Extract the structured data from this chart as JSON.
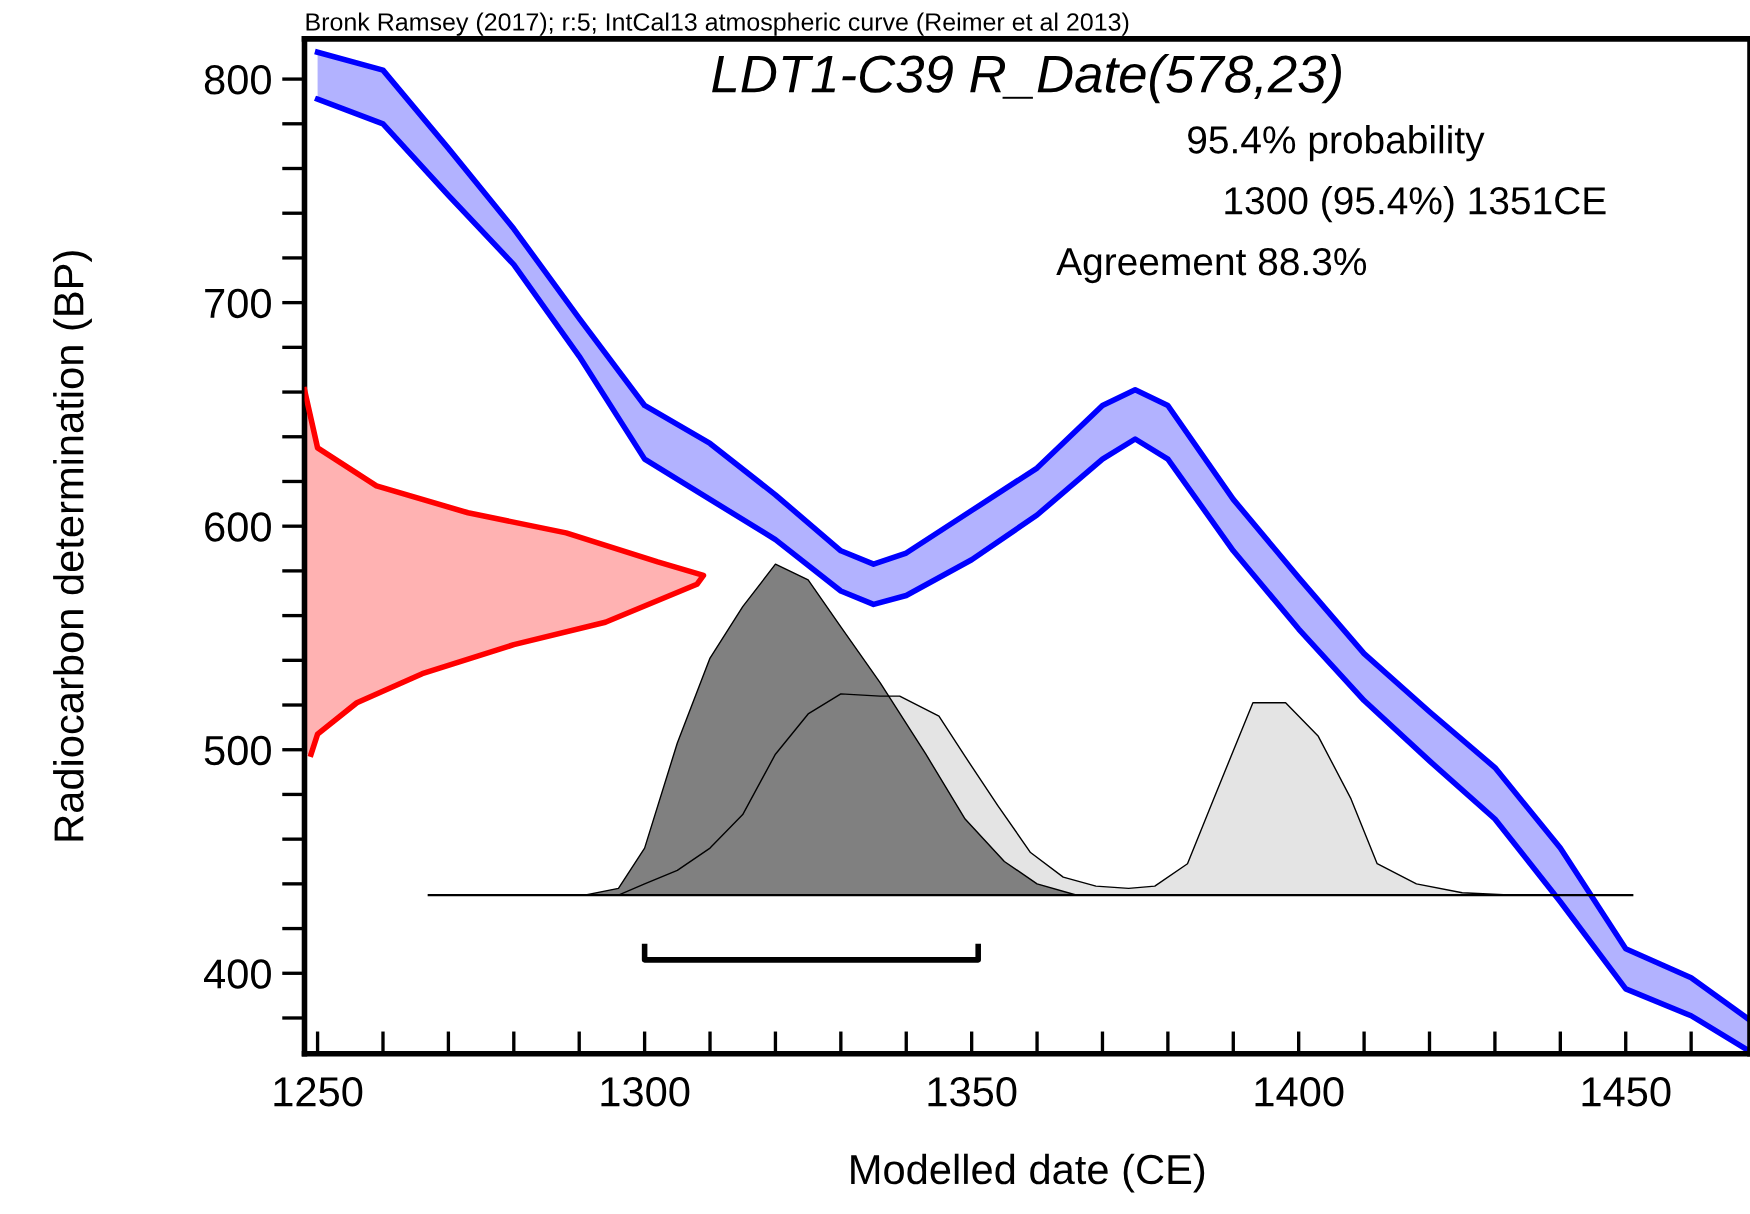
{
  "chart_data": {
    "type": "area",
    "title": "LDT1-C39 R_Date(578,23)",
    "xlabel": "Modelled date (CE)",
    "ylabel": "Radiocarbon determination (BP)",
    "annotations": [
      "Bronk Ramsey (2017); r:5; IntCal13 atmospheric curve (Reimer et al 2013)",
      "95.4% probability",
      "1300 (95.4%) 1351CE",
      "Agreement 88.3%"
    ],
    "xlim": [
      1248,
      1469
    ],
    "ylim": [
      364,
      818
    ],
    "xticks": [
      1250,
      {
        "value": 1260,
        "label": null
      },
      {
        "value": 1270,
        "label": null
      },
      {
        "value": 1280,
        "label": null
      },
      {
        "value": 1290,
        "label": null
      },
      1300,
      {
        "value": 1310,
        "label": null
      },
      {
        "value": 1320,
        "label": null
      },
      {
        "value": 1330,
        "label": null
      },
      {
        "value": 1340,
        "label": null
      },
      1350,
      {
        "value": 1360,
        "label": null
      },
      {
        "value": 1370,
        "label": null
      },
      {
        "value": 1380,
        "label": null
      },
      {
        "value": 1390,
        "label": null
      },
      1400,
      {
        "value": 1410,
        "label": null
      },
      {
        "value": 1420,
        "label": null
      },
      {
        "value": 1430,
        "label": null
      },
      {
        "value": 1440,
        "label": null
      },
      1450,
      {
        "value": 1460,
        "label": null
      }
    ],
    "yticks": [
      {
        "value": 380,
        "label": null
      },
      400,
      {
        "value": 420,
        "label": null
      },
      {
        "value": 440,
        "label": null
      },
      {
        "value": 460,
        "label": null
      },
      {
        "value": 480,
        "label": null
      },
      500,
      {
        "value": 520,
        "label": null
      },
      {
        "value": 540,
        "label": null
      },
      {
        "value": 560,
        "label": null
      },
      {
        "value": 580,
        "label": null
      },
      600,
      {
        "value": 620,
        "label": null
      },
      {
        "value": 640,
        "label": null
      },
      {
        "value": 660,
        "label": null
      },
      {
        "value": 680,
        "label": null
      },
      700,
      {
        "value": 720,
        "label": null
      },
      {
        "value": 740,
        "label": null
      },
      {
        "value": 760,
        "label": null
      },
      {
        "value": 780,
        "label": null
      },
      800
    ],
    "grid": false,
    "legend": false,
    "series": [
      {
        "type": "line",
        "color": "#0000ff",
        "x": [
          1250,
          1260,
          1270,
          1280,
          1290,
          1300,
          1310,
          1320,
          1330,
          1335,
          1340,
          1350,
          1360,
          1370,
          1375,
          1380,
          1390,
          1400,
          1410,
          1420,
          1430,
          1440,
          1450,
          1460,
          1469
        ],
        "values": [
          812,
          804,
          769,
          733,
          693,
          654,
          637,
          614,
          589,
          583,
          588,
          607,
          626,
          654,
          661,
          654,
          612,
          577,
          543,
          517,
          492,
          456,
          411,
          398,
          379
        ],
        "upper": [
          812,
          804,
          769,
          733,
          693,
          654,
          637,
          614,
          589,
          583,
          588,
          607,
          626,
          654,
          661,
          654,
          612,
          577,
          543,
          517,
          492,
          456,
          411,
          398,
          379
        ],
        "lower": [
          791,
          780,
          748,
          717,
          676,
          630,
          612,
          594,
          571,
          565,
          569,
          585,
          605,
          630,
          639,
          630,
          589,
          554,
          522,
          495,
          469,
          432,
          393,
          381,
          365
        ]
      },
      {
        "type": "line",
        "color": "#0000ff",
        "x": [
          1250,
          1260,
          1270,
          1280,
          1290,
          1300,
          1310,
          1320,
          1330,
          1335,
          1340,
          1350,
          1360,
          1370,
          1375,
          1380,
          1390,
          1400,
          1410,
          1420,
          1430,
          1440,
          1450,
          1460,
          1469
        ],
        "values": [
          791,
          780,
          748,
          717,
          676,
          630,
          612,
          594,
          571,
          565,
          569,
          585,
          605,
          630,
          639,
          630,
          589,
          554,
          522,
          495,
          469,
          432,
          393,
          381,
          365
        ]
      },
      {
        "color": "#ff0000",
        "x": [
          1248,
          1250,
          1259,
          1273,
          1288,
          1302,
          1309,
          1308,
          1294,
          1280,
          1266,
          1256,
          1250,
          1249
        ],
        "values": [
          661,
          635,
          618,
          606,
          597,
          584,
          578,
          574,
          557,
          547,
          534,
          521,
          507,
          498
        ]
      },
      {
        "color": "#e4e4e4",
        "x": [
          1296,
          1300,
          1305,
          1310,
          1315,
          1320,
          1325,
          1330,
          1336,
          1339,
          1345,
          1349,
          1354,
          1359,
          1364,
          1369,
          1374,
          1378,
          1383,
          1387,
          1393,
          1398,
          1403,
          1408,
          1412,
          1418,
          1425,
          1432
        ],
        "values": [
          435,
          440,
          446,
          456,
          471,
          498,
          516,
          525,
          524,
          524,
          515,
          497,
          475,
          454,
          443,
          439,
          438,
          439,
          449,
          478,
          521,
          521,
          506,
          478,
          449,
          440,
          436,
          435
        ]
      },
      {
        "color": "#808080",
        "x": [
          1291,
          1296,
          1300,
          1305,
          1310,
          1315,
          1320,
          1325,
          1330,
          1336,
          1343,
          1349,
          1355,
          1360,
          1366
        ],
        "values": [
          435,
          438,
          456,
          503,
          541,
          564,
          583,
          576,
          555,
          530,
          498,
          469,
          450,
          440,
          435
        ]
      },
      {
        "type": "line",
        "color": "#000000",
        "x": [
          1267,
          1451
        ],
        "values": [
          435,
          435
        ]
      },
      {
        "type": "line",
        "color": "#000000",
        "x": [
          1300,
          1300,
          1351,
          1351
        ],
        "values": [
          412,
          406,
          406,
          412
        ]
      }
    ]
  }
}
